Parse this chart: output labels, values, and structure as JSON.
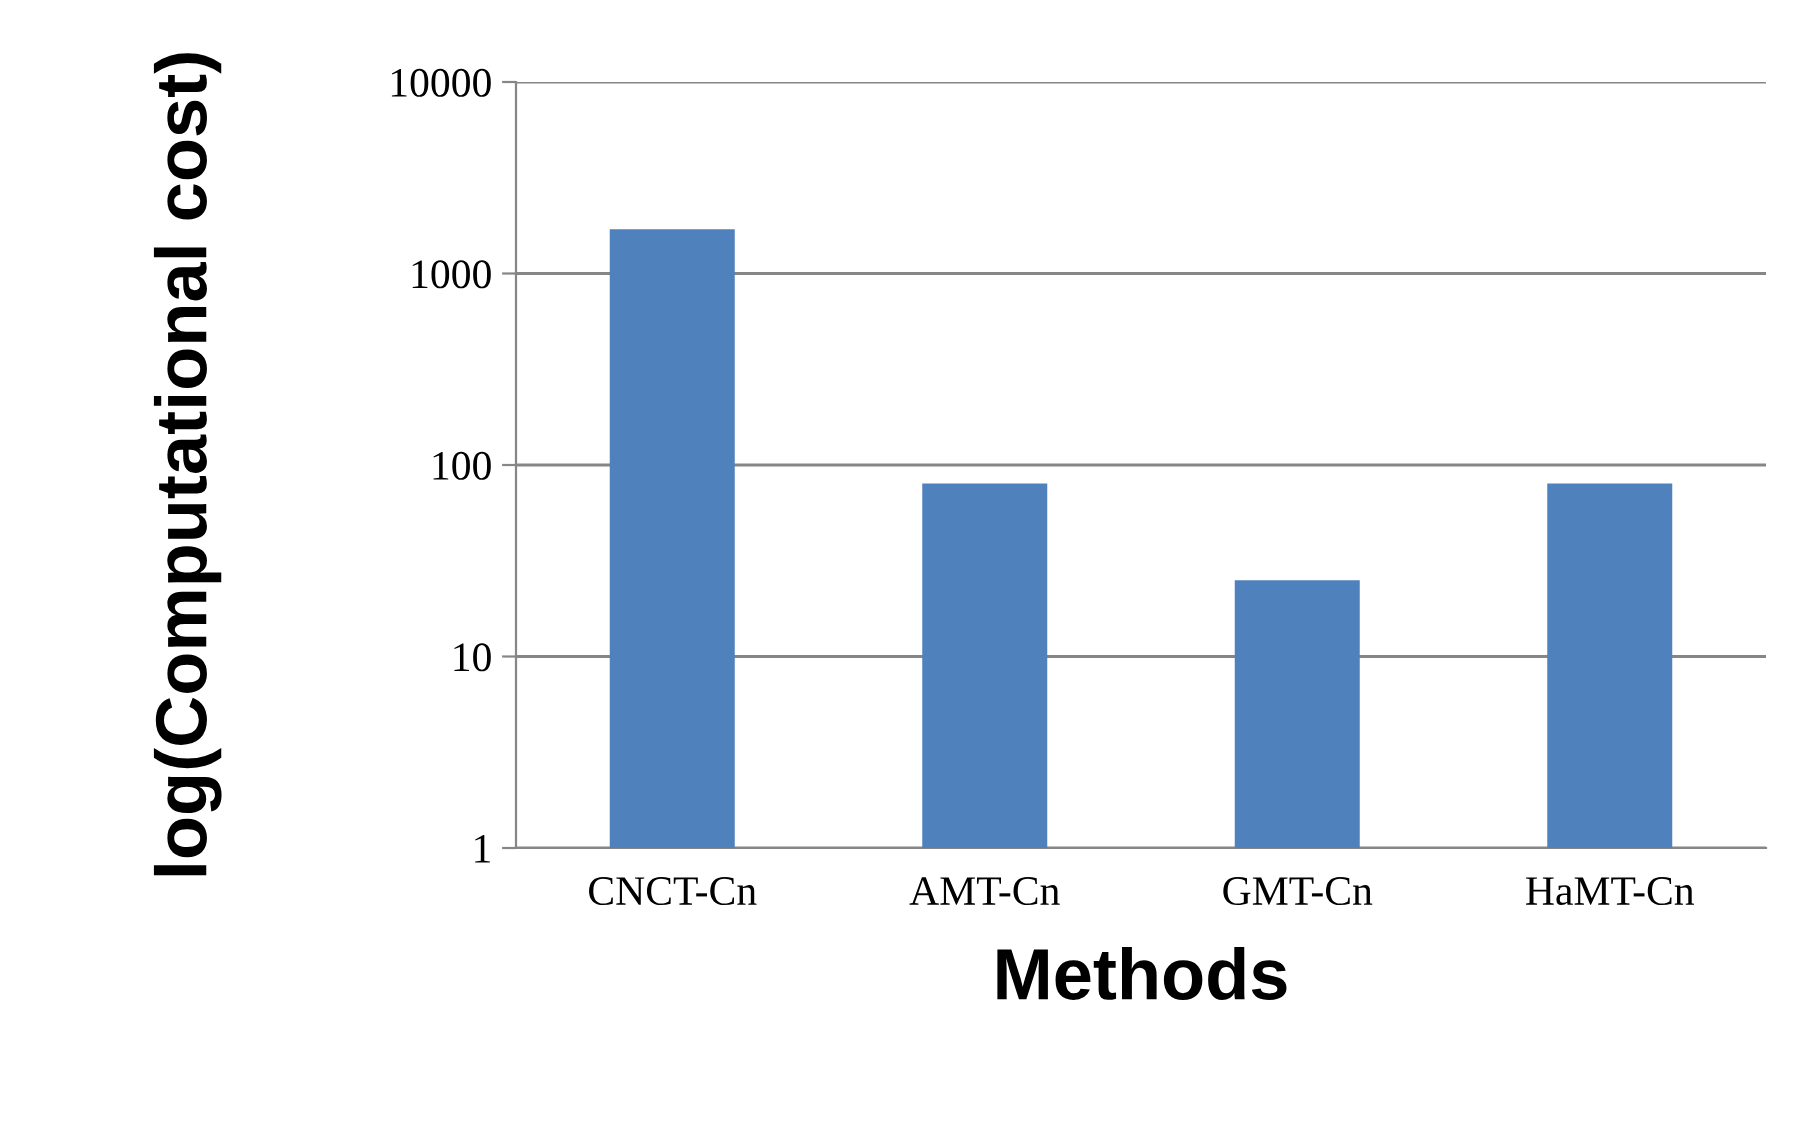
{
  "chart_data": {
    "type": "bar",
    "xlabel": "Methods",
    "ylabel": "log(Computational cost)",
    "categories": [
      "CNCT-Cn",
      "AMT-Cn",
      "GMT-Cn",
      "HaMT-Cn"
    ],
    "values": [
      1700,
      80,
      25,
      80
    ],
    "color": "#4f81bd",
    "log": true,
    "ylim": [
      1,
      10000
    ],
    "yticks": [
      1,
      10,
      100,
      1000,
      10000
    ],
    "grid": "y"
  }
}
